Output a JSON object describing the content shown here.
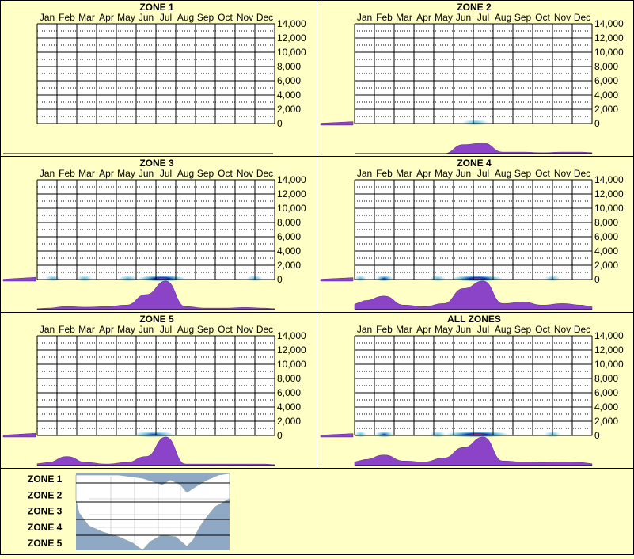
{
  "months": [
    "Jan",
    "Feb",
    "Mar",
    "Apr",
    "May",
    "Jun",
    "Jul",
    "Aug",
    "Sep",
    "Oct",
    "Nov",
    "Dec"
  ],
  "y_ticks": [
    "14,000",
    "12,000",
    "10,000",
    "8,000",
    "6,000",
    "4,000",
    "2,000",
    "0"
  ],
  "colors": {
    "background": "#ffffc6",
    "profile": "#8b44c8",
    "profile_edge": "#5a1f9a",
    "grid": "#000000",
    "heat_low": "#49b7d9",
    "heat_mid": "#1030c0",
    "heat_high": "#e0206a",
    "map_water": "#8fa9c4",
    "map_land": "#ffffff"
  },
  "chart_data": [
    {
      "type": "heatmap",
      "title": "ZONE 1",
      "categories": [
        "Jan",
        "Feb",
        "Mar",
        "Apr",
        "May",
        "Jun",
        "Jul",
        "Aug",
        "Sep",
        "Oct",
        "Nov",
        "Dec"
      ],
      "ylim": [
        0,
        14000
      ],
      "elevation_profile": [
        0.6
      ],
      "monthly_profile": [
        0,
        0,
        0,
        0,
        0,
        0,
        0,
        0,
        0,
        0,
        0,
        0
      ],
      "heat": []
    },
    {
      "type": "heatmap",
      "title": "ZONE 2",
      "categories": [
        "Jan",
        "Feb",
        "Mar",
        "Apr",
        "May",
        "Jun",
        "Jul",
        "Aug",
        "Sep",
        "Oct",
        "Nov",
        "Dec"
      ],
      "ylim": [
        0,
        14000
      ],
      "elevation_profile": [
        0.3,
        0.55
      ],
      "monthly_profile": [
        0,
        0,
        0,
        0,
        0,
        0.3,
        0.35,
        0.05,
        0.05,
        0.03,
        0.05,
        0.05
      ],
      "heat": [
        {
          "month": 6.1,
          "elevation": 150,
          "level": 1,
          "span": 1.3
        }
      ]
    },
    {
      "type": "heatmap",
      "title": "ZONE 3",
      "categories": [
        "Jan",
        "Feb",
        "Mar",
        "Apr",
        "May",
        "Jun",
        "Jul",
        "Aug",
        "Sep",
        "Oct",
        "Nov",
        "Dec"
      ],
      "ylim": [
        0,
        14000
      ],
      "elevation_profile": [
        0.3,
        0.6
      ],
      "monthly_profile": [
        0.05,
        0.1,
        0.08,
        0.1,
        0.15,
        0.5,
        0.95,
        0.1,
        0.05,
        0.05,
        0.07,
        0.05
      ],
      "heat": [
        {
          "month": 6.3,
          "elevation": 150,
          "level": 3,
          "span": 2.4
        },
        {
          "month": 0.8,
          "elevation": 150,
          "level": 1,
          "span": 0.8
        },
        {
          "month": 2.4,
          "elevation": 150,
          "level": 1,
          "span": 0.8
        },
        {
          "month": 4.6,
          "elevation": 150,
          "level": 1,
          "span": 1.0
        },
        {
          "month": 11.0,
          "elevation": 150,
          "level": 1,
          "span": 0.8
        }
      ]
    },
    {
      "type": "heatmap",
      "title": "ZONE 4",
      "categories": [
        "Jan",
        "Feb",
        "Mar",
        "Apr",
        "May",
        "Jun",
        "Jul",
        "Aug",
        "Sep",
        "Oct",
        "Nov",
        "Dec"
      ],
      "ylim": [
        0,
        14000
      ],
      "elevation_profile": [
        0.3,
        0.55
      ],
      "monthly_profile": [
        0.3,
        0.45,
        0.15,
        0.1,
        0.2,
        0.7,
        0.95,
        0.2,
        0.25,
        0.15,
        0.2,
        0.15
      ],
      "heat": [
        {
          "month": 6.2,
          "elevation": 150,
          "level": 3,
          "span": 2.6
        },
        {
          "month": 1.5,
          "elevation": 150,
          "level": 2,
          "span": 0.9
        },
        {
          "month": 0.3,
          "elevation": 150,
          "level": 1,
          "span": 0.6
        },
        {
          "month": 4.2,
          "elevation": 150,
          "level": 1,
          "span": 0.8
        },
        {
          "month": 10.0,
          "elevation": 150,
          "level": 1,
          "span": 0.8
        }
      ]
    },
    {
      "type": "heatmap",
      "title": "ZONE 5",
      "categories": [
        "Jan",
        "Feb",
        "Mar",
        "Apr",
        "May",
        "Jun",
        "Jul",
        "Aug",
        "Sep",
        "Oct",
        "Nov",
        "Dec"
      ],
      "ylim": [
        0,
        14000
      ],
      "elevation_profile": [
        0.3,
        0.6
      ],
      "monthly_profile": [
        0.1,
        0.3,
        0.1,
        0.05,
        0.1,
        0.3,
        0.95,
        0.05,
        0.05,
        0.05,
        0.05,
        0.05
      ],
      "heat": [
        {
          "month": 5.9,
          "elevation": 150,
          "level": 2,
          "span": 2.0
        }
      ]
    },
    {
      "type": "heatmap",
      "title": "ALL ZONES",
      "categories": [
        "Jan",
        "Feb",
        "Mar",
        "Apr",
        "May",
        "Jun",
        "Jul",
        "Aug",
        "Sep",
        "Oct",
        "Nov",
        "Dec"
      ],
      "ylim": [
        0,
        14000
      ],
      "elevation_profile": [
        0.3,
        0.55
      ],
      "monthly_profile": [
        0.2,
        0.35,
        0.15,
        0.12,
        0.25,
        0.6,
        0.95,
        0.15,
        0.12,
        0.1,
        0.12,
        0.1
      ],
      "heat": [
        {
          "month": 6.2,
          "elevation": 150,
          "level": 3,
          "span": 3.2
        },
        {
          "month": 1.5,
          "elevation": 150,
          "level": 2,
          "span": 0.9
        },
        {
          "month": 0.3,
          "elevation": 150,
          "level": 1,
          "span": 0.6
        },
        {
          "month": 4.2,
          "elevation": 150,
          "level": 1,
          "span": 0.8
        },
        {
          "month": 10.0,
          "elevation": 150,
          "level": 1,
          "span": 0.8
        }
      ]
    }
  ],
  "legend": {
    "zones": [
      "ZONE 1",
      "ZONE 2",
      "ZONE 3",
      "ZONE 4",
      "ZONE 5"
    ],
    "map_icon": "us-map"
  }
}
